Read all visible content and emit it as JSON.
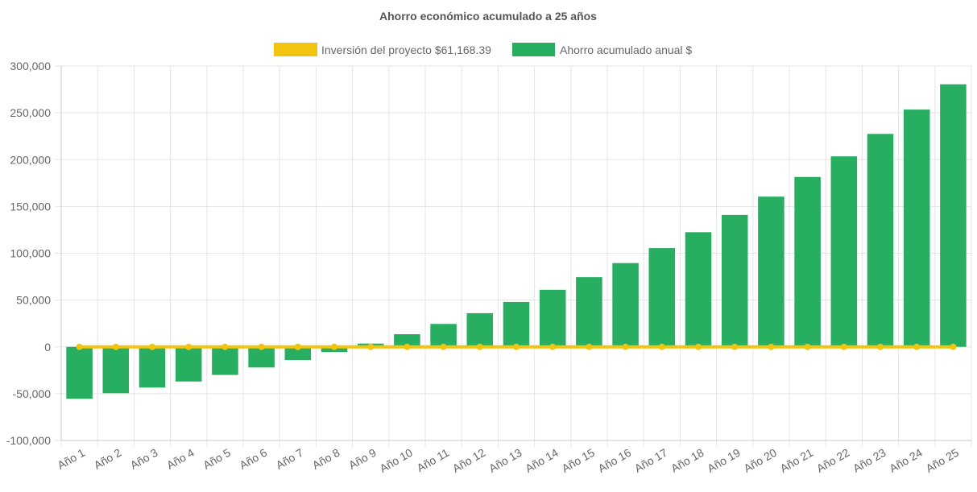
{
  "chart_data": {
    "type": "bar",
    "title": "Ahorro económico acumulado a 25 años",
    "legend_position": "top",
    "grid": true,
    "categories": [
      "Año 1",
      "Año 2",
      "Año 3",
      "Año 4",
      "Año 5",
      "Año 6",
      "Año 7",
      "Año 8",
      "Año 9",
      "Año 10",
      "Año 11",
      "Año 12",
      "Año 13",
      "Año 14",
      "Año 15",
      "Año 16",
      "Año 17",
      "Año 18",
      "Año 19",
      "Año 20",
      "Año 21",
      "Año 22",
      "Año 23",
      "Año 24",
      "Año 25"
    ],
    "ylim": [
      -100000,
      300000
    ],
    "yticks": [
      300000,
      250000,
      200000,
      150000,
      100000,
      50000,
      0,
      -50000,
      -100000
    ],
    "ytick_labels": [
      "300,000",
      "250,000",
      "200,000",
      "150,000",
      "100,000",
      "50,000",
      "0",
      "-50,000",
      "-100,000"
    ],
    "series": [
      {
        "name": "Inversión del proyecto $61,168.39",
        "type": "line",
        "color": "#f1c40f",
        "values": [
          0,
          0,
          0,
          0,
          0,
          0,
          0,
          0,
          0,
          0,
          0,
          0,
          0,
          0,
          0,
          0,
          0,
          0,
          0,
          0,
          0,
          0,
          0,
          0,
          0
        ]
      },
      {
        "name": "Ahorro acumulado anual $",
        "type": "bar",
        "color": "#27ae60",
        "values": [
          -55500,
          -49500,
          -43500,
          -37000,
          -30000,
          -22000,
          -14000,
          -5500,
          3500,
          13500,
          24500,
          36000,
          48000,
          61000,
          74500,
          89500,
          105500,
          122500,
          141000,
          160500,
          181500,
          203500,
          227500,
          253500,
          280500
        ]
      }
    ]
  }
}
